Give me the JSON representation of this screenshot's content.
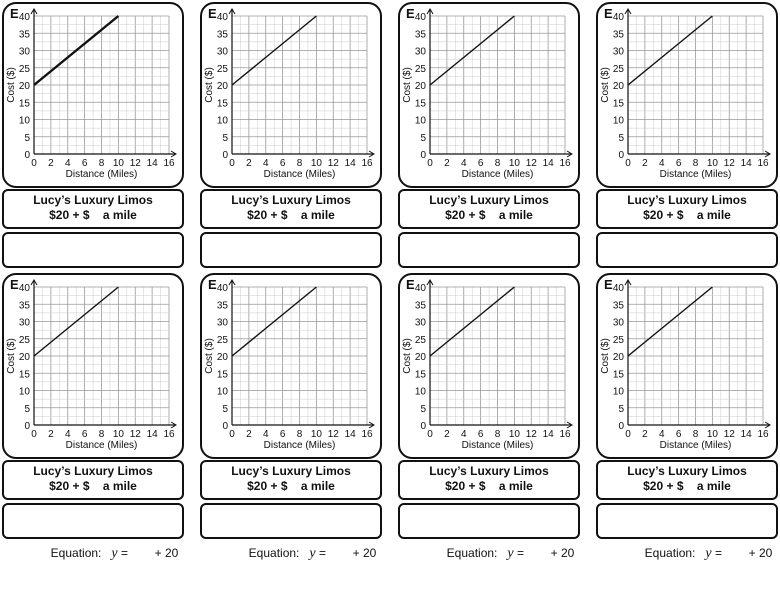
{
  "cards": [
    {
      "letter": "E",
      "title": "Lucy’s Luxury Limos",
      "subtitle": "$20 + $    a mile",
      "eq_label": "Equation:",
      "eq_var": "y",
      "eq_equals": "=",
      "eq_tail": "+ 20"
    },
    {
      "letter": "E",
      "title": "Lucy’s Luxury Limos",
      "subtitle": "$20 + $    a mile",
      "eq_label": "Equation:",
      "eq_var": "y",
      "eq_equals": "=",
      "eq_tail": "+ 20"
    },
    {
      "letter": "E",
      "title": "Lucy’s Luxury Limos",
      "subtitle": "$20 + $    a mile",
      "eq_label": "Equation:",
      "eq_var": "y",
      "eq_equals": "=",
      "eq_tail": "+ 20"
    },
    {
      "letter": "E",
      "title": "Lucy’s Luxury Limos",
      "subtitle": "$20 + $    a mile",
      "eq_label": "Equation:",
      "eq_var": "y",
      "eq_equals": "=",
      "eq_tail": "+ 20"
    },
    {
      "letter": "E",
      "title": "Lucy’s Luxury Limos",
      "subtitle": "$20 + $    a mile",
      "eq_label": "Equation:",
      "eq_var": "y",
      "eq_equals": "=",
      "eq_tail": "+ 20"
    },
    {
      "letter": "E",
      "title": "Lucy’s Luxury Limos",
      "subtitle": "$20 + $    a mile",
      "eq_label": "Equation:",
      "eq_var": "y",
      "eq_equals": "=",
      "eq_tail": "+ 20"
    },
    {
      "letter": "E",
      "title": "Lucy’s Luxury Limos",
      "subtitle": "$20 + $    a mile",
      "eq_label": "Equation:",
      "eq_var": "y",
      "eq_equals": "=",
      "eq_tail": "+ 20"
    },
    {
      "letter": "E",
      "title": "Lucy’s Luxury Limos",
      "subtitle": "$20 + $    a mile",
      "eq_label": "Equation:",
      "eq_var": "y",
      "eq_equals": "=",
      "eq_tail": "+ 20"
    }
  ],
  "chart_data": {
    "type": "line",
    "xlabel": "Distance (Miles)",
    "ylabel": "Cost ($)",
    "xlim": [
      0,
      16
    ],
    "ylim": [
      0,
      40
    ],
    "xticks": [
      "0",
      "2",
      "4",
      "6",
      "8",
      "10",
      "12",
      "14",
      "16"
    ],
    "yticks": [
      "0",
      "5",
      "10",
      "15",
      "20",
      "25",
      "30",
      "35",
      "40"
    ],
    "grid": true,
    "series": [
      {
        "x": [
          0,
          10
        ],
        "y": [
          20,
          40
        ]
      }
    ]
  }
}
